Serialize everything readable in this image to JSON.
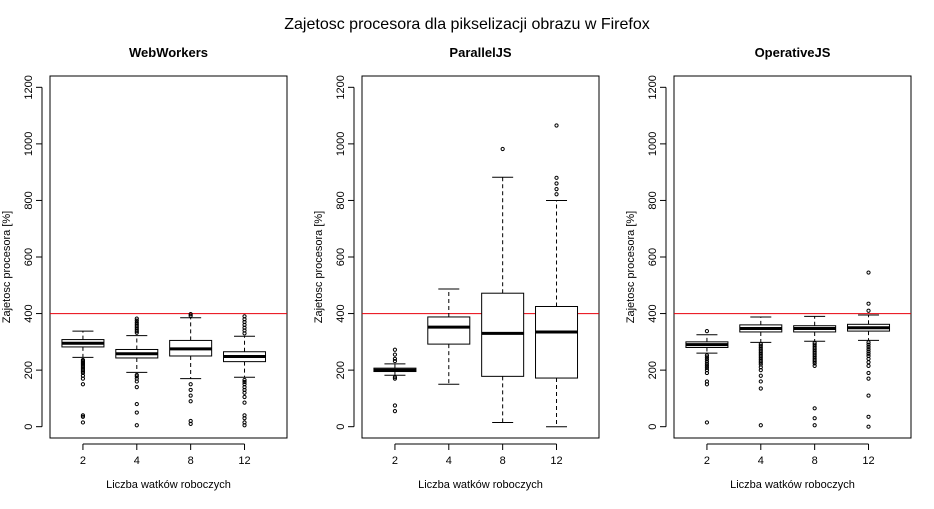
{
  "figure": {
    "title": "Zajetosc procesora dla pikselizacji obrazu w Firefox"
  },
  "chart_data": [
    {
      "type": "boxplot",
      "title": "WebWorkers",
      "xlabel": "Liczba watków roboczych",
      "ylabel": "Zajetosc procesora [%]",
      "ylim": [
        -40,
        1240
      ],
      "yticks": [
        0,
        200,
        400,
        600,
        800,
        1000,
        1200
      ],
      "categories": [
        "2",
        "4",
        "8",
        "12"
      ],
      "reference_line": {
        "y": 400,
        "color": "#e8000b"
      },
      "boxes": [
        {
          "whisker_low": 245,
          "q1": 282,
          "median": 295,
          "q3": 308,
          "whisker_high": 338,
          "outliers": [
            236,
            232,
            228,
            224,
            220,
            215,
            210,
            205,
            200,
            195,
            190,
            180,
            170,
            150,
            40,
            35,
            15
          ]
        },
        {
          "whisker_low": 192,
          "q1": 243,
          "median": 258,
          "q3": 273,
          "whisker_high": 322,
          "outliers": [
            382,
            375,
            368,
            362,
            356,
            350,
            344,
            338,
            332,
            183,
            178,
            170,
            160,
            140,
            80,
            50,
            5
          ]
        },
        {
          "whisker_low": 170,
          "q1": 250,
          "median": 275,
          "q3": 305,
          "whisker_high": 385,
          "outliers": [
            398,
            392,
            150,
            130,
            110,
            90,
            20,
            10
          ]
        },
        {
          "whisker_low": 175,
          "q1": 230,
          "median": 248,
          "q3": 265,
          "whisker_high": 320,
          "outliers": [
            390,
            380,
            370,
            360,
            350,
            340,
            330,
            165,
            158,
            150,
            140,
            130,
            120,
            105,
            85,
            40,
            30,
            15,
            5
          ]
        }
      ]
    },
    {
      "type": "boxplot",
      "title": "ParallelJS",
      "xlabel": "Liczba watków roboczych",
      "ylabel": "Zajetosc procesora [%]",
      "ylim": [
        -40,
        1240
      ],
      "yticks": [
        0,
        200,
        400,
        600,
        800,
        1000,
        1200
      ],
      "categories": [
        "2",
        "4",
        "8",
        "12"
      ],
      "reference_line": {
        "y": 400,
        "color": "#e8000b"
      },
      "boxes": [
        {
          "whisker_low": 182,
          "q1": 195,
          "median": 200,
          "q3": 207,
          "whisker_high": 222,
          "outliers": [
            272,
            255,
            240,
            232,
            175,
            170,
            75,
            55
          ]
        },
        {
          "whisker_low": 150,
          "q1": 292,
          "median": 352,
          "q3": 388,
          "whisker_high": 487,
          "outliers": []
        },
        {
          "whisker_low": 15,
          "q1": 178,
          "median": 330,
          "q3": 472,
          "whisker_high": 882,
          "outliers": [
            982
          ]
        },
        {
          "whisker_low": 0,
          "q1": 172,
          "median": 335,
          "q3": 425,
          "whisker_high": 800,
          "outliers": [
            1065,
            880,
            860,
            840,
            822
          ]
        }
      ]
    },
    {
      "type": "boxplot",
      "title": "OperativeJS",
      "xlabel": "Liczba watków roboczych",
      "ylabel": "Zajetosc procesora [%]",
      "ylim": [
        -40,
        1240
      ],
      "yticks": [
        0,
        200,
        400,
        600,
        800,
        1000,
        1200
      ],
      "categories": [
        "2",
        "4",
        "8",
        "12"
      ],
      "reference_line": {
        "y": 400,
        "color": "#e8000b"
      },
      "boxes": [
        {
          "whisker_low": 260,
          "q1": 280,
          "median": 290,
          "q3": 300,
          "whisker_high": 325,
          "outliers": [
            338,
            252,
            245,
            238,
            230,
            222,
            215,
            208,
            200,
            190,
            160,
            150,
            15
          ]
        },
        {
          "whisker_low": 298,
          "q1": 335,
          "median": 347,
          "q3": 360,
          "whisker_high": 388,
          "outliers": [
            292,
            286,
            280,
            274,
            268,
            262,
            256,
            250,
            244,
            238,
            232,
            226,
            220,
            210,
            200,
            180,
            160,
            135,
            5
          ]
        },
        {
          "whisker_low": 302,
          "q1": 335,
          "median": 347,
          "q3": 357,
          "whisker_high": 390,
          "outliers": [
            296,
            290,
            284,
            278,
            272,
            266,
            260,
            254,
            248,
            242,
            236,
            230,
            224,
            215,
            65,
            30,
            5
          ]
        },
        {
          "whisker_low": 305,
          "q1": 338,
          "median": 350,
          "q3": 362,
          "whisker_high": 395,
          "outliers": [
            545,
            435,
            410,
            298,
            290,
            282,
            274,
            266,
            258,
            250,
            240,
            228,
            215,
            190,
            170,
            110,
            35,
            0
          ]
        }
      ]
    }
  ]
}
